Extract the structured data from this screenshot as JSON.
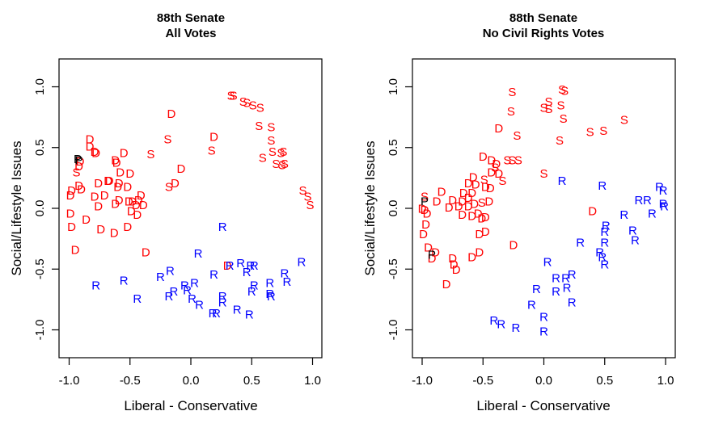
{
  "colors": {
    "D": "#ff0000",
    "S": "#ff0000",
    "R": "#0000ff",
    "P": "#000000"
  },
  "chart_data": [
    {
      "type": "scatter",
      "title": "88th Senate",
      "subtitle": "All Votes",
      "xlabel": "Liberal - Conservative",
      "ylabel": "Social/Lifestyle Issues",
      "xlim": [
        -1.08,
        1.08
      ],
      "ylim": [
        -1.23,
        1.23
      ],
      "xticks": [
        -1.0,
        -0.5,
        0.0,
        0.5,
        1.0
      ],
      "xtick_labels": [
        "-1.0",
        "-0.5",
        "0.0",
        "0.5",
        "1.0"
      ],
      "yticks": [
        -1.0,
        -0.5,
        0.0,
        0.5,
        1.0
      ],
      "ytick_labels": [
        "-1.0",
        "-0.5",
        "0.0",
        "0.5",
        "1.0"
      ],
      "grid": false,
      "marker": "letter",
      "points": [
        {
          "x": 0.33,
          "y": 0.93,
          "label": "S"
        },
        {
          "x": 0.35,
          "y": 0.93,
          "label": "S"
        },
        {
          "x": 0.43,
          "y": 0.88,
          "label": "S"
        },
        {
          "x": 0.46,
          "y": 0.87,
          "label": "S"
        },
        {
          "x": 0.51,
          "y": 0.85,
          "label": "S"
        },
        {
          "x": 0.57,
          "y": 0.83,
          "label": "S"
        },
        {
          "x": 0.56,
          "y": 0.68,
          "label": "S"
        },
        {
          "x": 0.66,
          "y": 0.67,
          "label": "S"
        },
        {
          "x": 0.66,
          "y": 0.56,
          "label": "S"
        },
        {
          "x": 0.67,
          "y": 0.47,
          "label": "S"
        },
        {
          "x": 0.59,
          "y": 0.42,
          "label": "S"
        },
        {
          "x": 0.74,
          "y": 0.46,
          "label": "S"
        },
        {
          "x": 0.76,
          "y": 0.47,
          "label": "S"
        },
        {
          "x": 0.7,
          "y": 0.37,
          "label": "S"
        },
        {
          "x": 0.75,
          "y": 0.36,
          "label": "S"
        },
        {
          "x": 0.77,
          "y": 0.37,
          "label": "S"
        },
        {
          "x": 0.92,
          "y": 0.15,
          "label": "S"
        },
        {
          "x": 0.96,
          "y": 0.1,
          "label": "S"
        },
        {
          "x": 0.98,
          "y": 0.03,
          "label": "S"
        },
        {
          "x": -0.33,
          "y": 0.45,
          "label": "S"
        },
        {
          "x": -0.19,
          "y": 0.57,
          "label": "S"
        },
        {
          "x": 0.17,
          "y": 0.48,
          "label": "S"
        },
        {
          "x": -0.18,
          "y": 0.18,
          "label": "S"
        },
        {
          "x": -0.94,
          "y": 0.3,
          "label": "S"
        },
        {
          "x": -0.16,
          "y": 0.78,
          "label": "D"
        },
        {
          "x": 0.19,
          "y": 0.59,
          "label": "D"
        },
        {
          "x": -0.08,
          "y": 0.33,
          "label": "D"
        },
        {
          "x": -0.13,
          "y": 0.21,
          "label": "D"
        },
        {
          "x": -0.83,
          "y": 0.57,
          "label": "D"
        },
        {
          "x": -0.83,
          "y": 0.51,
          "label": "D"
        },
        {
          "x": -0.79,
          "y": 0.47,
          "label": "D"
        },
        {
          "x": -0.78,
          "y": 0.46,
          "label": "D"
        },
        {
          "x": -0.62,
          "y": 0.4,
          "label": "D"
        },
        {
          "x": -0.61,
          "y": 0.38,
          "label": "D"
        },
        {
          "x": -0.55,
          "y": 0.46,
          "label": "D"
        },
        {
          "x": -0.91,
          "y": 0.39,
          "label": "D"
        },
        {
          "x": -0.92,
          "y": 0.35,
          "label": "D"
        },
        {
          "x": -0.58,
          "y": 0.3,
          "label": "D"
        },
        {
          "x": -0.5,
          "y": 0.29,
          "label": "D"
        },
        {
          "x": -0.59,
          "y": 0.21,
          "label": "D"
        },
        {
          "x": -0.68,
          "y": 0.23,
          "label": "D"
        },
        {
          "x": -0.67,
          "y": 0.23,
          "label": "D"
        },
        {
          "x": -0.76,
          "y": 0.21,
          "label": "D"
        },
        {
          "x": -0.6,
          "y": 0.18,
          "label": "D"
        },
        {
          "x": -0.52,
          "y": 0.18,
          "label": "D"
        },
        {
          "x": -0.92,
          "y": 0.19,
          "label": "D"
        },
        {
          "x": -0.9,
          "y": 0.16,
          "label": "D"
        },
        {
          "x": -0.98,
          "y": 0.15,
          "label": "D"
        },
        {
          "x": -0.99,
          "y": 0.11,
          "label": "D"
        },
        {
          "x": -0.79,
          "y": 0.1,
          "label": "D"
        },
        {
          "x": -0.71,
          "y": 0.11,
          "label": "D"
        },
        {
          "x": -0.59,
          "y": 0.07,
          "label": "D"
        },
        {
          "x": -0.51,
          "y": 0.06,
          "label": "D"
        },
        {
          "x": -0.48,
          "y": 0.06,
          "label": "D"
        },
        {
          "x": -0.43,
          "y": 0.07,
          "label": "D"
        },
        {
          "x": -0.41,
          "y": 0.11,
          "label": "D"
        },
        {
          "x": -0.39,
          "y": 0.03,
          "label": "D"
        },
        {
          "x": -0.45,
          "y": 0.03,
          "label": "D"
        },
        {
          "x": -0.62,
          "y": 0.04,
          "label": "D"
        },
        {
          "x": -0.76,
          "y": 0.02,
          "label": "D"
        },
        {
          "x": -0.49,
          "y": -0.02,
          "label": "D"
        },
        {
          "x": -0.44,
          "y": -0.05,
          "label": "D"
        },
        {
          "x": -0.99,
          "y": -0.04,
          "label": "D"
        },
        {
          "x": -0.86,
          "y": -0.09,
          "label": "D"
        },
        {
          "x": -0.98,
          "y": -0.15,
          "label": "D"
        },
        {
          "x": -0.74,
          "y": -0.17,
          "label": "D"
        },
        {
          "x": -0.63,
          "y": -0.2,
          "label": "D"
        },
        {
          "x": -0.52,
          "y": -0.15,
          "label": "D"
        },
        {
          "x": -0.95,
          "y": -0.34,
          "label": "D"
        },
        {
          "x": -0.37,
          "y": -0.36,
          "label": "D"
        },
        {
          "x": 0.3,
          "y": -0.47,
          "label": "D"
        },
        {
          "x": -0.93,
          "y": 0.41,
          "label": "P"
        },
        {
          "x": -0.92,
          "y": 0.4,
          "label": "P"
        },
        {
          "x": 0.26,
          "y": -0.15,
          "label": "R"
        },
        {
          "x": 0.06,
          "y": -0.37,
          "label": "R"
        },
        {
          "x": 0.91,
          "y": -0.44,
          "label": "R"
        },
        {
          "x": 0.41,
          "y": -0.45,
          "label": "R"
        },
        {
          "x": 0.49,
          "y": -0.47,
          "label": "R"
        },
        {
          "x": 0.52,
          "y": -0.47,
          "label": "R"
        },
        {
          "x": 0.32,
          "y": -0.47,
          "label": "R"
        },
        {
          "x": 0.46,
          "y": -0.52,
          "label": "R"
        },
        {
          "x": 0.19,
          "y": -0.54,
          "label": "R"
        },
        {
          "x": -0.17,
          "y": -0.51,
          "label": "R"
        },
        {
          "x": -0.25,
          "y": -0.56,
          "label": "R"
        },
        {
          "x": -0.55,
          "y": -0.59,
          "label": "R"
        },
        {
          "x": -0.78,
          "y": -0.63,
          "label": "R"
        },
        {
          "x": 0.77,
          "y": -0.53,
          "label": "R"
        },
        {
          "x": 0.79,
          "y": -0.6,
          "label": "R"
        },
        {
          "x": 0.65,
          "y": -0.61,
          "label": "R"
        },
        {
          "x": 0.52,
          "y": -0.63,
          "label": "R"
        },
        {
          "x": 0.03,
          "y": -0.61,
          "label": "R"
        },
        {
          "x": -0.05,
          "y": -0.63,
          "label": "R"
        },
        {
          "x": -0.03,
          "y": -0.67,
          "label": "R"
        },
        {
          "x": -0.14,
          "y": -0.68,
          "label": "R"
        },
        {
          "x": -0.18,
          "y": -0.72,
          "label": "R"
        },
        {
          "x": -0.44,
          "y": -0.74,
          "label": "R"
        },
        {
          "x": 0.26,
          "y": -0.72,
          "label": "R"
        },
        {
          "x": 0.26,
          "y": -0.77,
          "label": "R"
        },
        {
          "x": 0.5,
          "y": -0.68,
          "label": "R"
        },
        {
          "x": 0.65,
          "y": -0.7,
          "label": "R"
        },
        {
          "x": 0.66,
          "y": -0.72,
          "label": "R"
        },
        {
          "x": 0.01,
          "y": -0.74,
          "label": "R"
        },
        {
          "x": 0.07,
          "y": -0.79,
          "label": "R"
        },
        {
          "x": 0.18,
          "y": -0.86,
          "label": "R"
        },
        {
          "x": 0.21,
          "y": -0.86,
          "label": "R"
        },
        {
          "x": 0.38,
          "y": -0.83,
          "label": "R"
        },
        {
          "x": 0.48,
          "y": -0.87,
          "label": "R"
        }
      ]
    },
    {
      "type": "scatter",
      "title": "88th Senate",
      "subtitle": "No Civil Rights Votes",
      "xlabel": "Liberal - Conservative",
      "ylabel": "Social/Lifestyle Issues",
      "xlim": [
        -1.08,
        1.08
      ],
      "ylim": [
        -1.23,
        1.23
      ],
      "xticks": [
        -1.0,
        -0.5,
        0.0,
        0.5,
        1.0
      ],
      "xtick_labels": [
        "-1.0",
        "-0.5",
        "0.0",
        "0.5",
        "1.0"
      ],
      "yticks": [
        -1.0,
        -0.5,
        0.0,
        0.5,
        1.0
      ],
      "ytick_labels": [
        "-1.0",
        "-0.5",
        "0.0",
        "0.5",
        "1.0"
      ],
      "grid": false,
      "marker": "letter",
      "points": [
        {
          "x": -0.26,
          "y": 0.96,
          "label": "S"
        },
        {
          "x": 0.15,
          "y": 0.98,
          "label": "S"
        },
        {
          "x": 0.17,
          "y": 0.97,
          "label": "S"
        },
        {
          "x": -0.27,
          "y": 0.8,
          "label": "S"
        },
        {
          "x": 0.04,
          "y": 0.88,
          "label": "S"
        },
        {
          "x": 0.0,
          "y": 0.83,
          "label": "S"
        },
        {
          "x": 0.04,
          "y": 0.82,
          "label": "S"
        },
        {
          "x": 0.14,
          "y": 0.85,
          "label": "S"
        },
        {
          "x": 0.16,
          "y": 0.74,
          "label": "S"
        },
        {
          "x": 0.38,
          "y": 0.63,
          "label": "S"
        },
        {
          "x": 0.49,
          "y": 0.64,
          "label": "S"
        },
        {
          "x": 0.66,
          "y": 0.73,
          "label": "S"
        },
        {
          "x": -0.22,
          "y": 0.6,
          "label": "S"
        },
        {
          "x": 0.13,
          "y": 0.56,
          "label": "S"
        },
        {
          "x": -0.4,
          "y": 0.34,
          "label": "S"
        },
        {
          "x": -0.3,
          "y": 0.4,
          "label": "S"
        },
        {
          "x": -0.26,
          "y": 0.4,
          "label": "S"
        },
        {
          "x": -0.21,
          "y": 0.4,
          "label": "S"
        },
        {
          "x": -0.34,
          "y": 0.23,
          "label": "S"
        },
        {
          "x": -0.49,
          "y": 0.24,
          "label": "S"
        },
        {
          "x": -0.51,
          "y": 0.05,
          "label": "S"
        },
        {
          "x": -0.98,
          "y": 0.1,
          "label": "S"
        },
        {
          "x": 0.0,
          "y": 0.29,
          "label": "S"
        },
        {
          "x": -0.37,
          "y": 0.66,
          "label": "D"
        },
        {
          "x": -0.5,
          "y": 0.43,
          "label": "D"
        },
        {
          "x": -0.43,
          "y": 0.4,
          "label": "D"
        },
        {
          "x": -0.39,
          "y": 0.37,
          "label": "D"
        },
        {
          "x": -0.43,
          "y": 0.3,
          "label": "D"
        },
        {
          "x": -0.37,
          "y": 0.29,
          "label": "D"
        },
        {
          "x": -0.58,
          "y": 0.26,
          "label": "D"
        },
        {
          "x": -0.56,
          "y": 0.2,
          "label": "D"
        },
        {
          "x": -0.62,
          "y": 0.21,
          "label": "D"
        },
        {
          "x": -0.59,
          "y": 0.13,
          "label": "D"
        },
        {
          "x": -0.48,
          "y": 0.18,
          "label": "D"
        },
        {
          "x": -0.44,
          "y": 0.17,
          "label": "D"
        },
        {
          "x": -0.62,
          "y": 0.09,
          "label": "D"
        },
        {
          "x": -0.66,
          "y": 0.13,
          "label": "D"
        },
        {
          "x": -0.67,
          "y": 0.06,
          "label": "D"
        },
        {
          "x": -0.75,
          "y": 0.07,
          "label": "D"
        },
        {
          "x": -0.84,
          "y": 0.14,
          "label": "D"
        },
        {
          "x": -0.88,
          "y": 0.06,
          "label": "D"
        },
        {
          "x": -0.78,
          "y": 0.01,
          "label": "D"
        },
        {
          "x": -0.7,
          "y": 0.02,
          "label": "D"
        },
        {
          "x": -0.62,
          "y": 0.02,
          "label": "D"
        },
        {
          "x": -0.57,
          "y": 0.04,
          "label": "D"
        },
        {
          "x": -0.45,
          "y": 0.06,
          "label": "D"
        },
        {
          "x": -0.54,
          "y": -0.04,
          "label": "D"
        },
        {
          "x": -0.51,
          "y": -0.08,
          "label": "D"
        },
        {
          "x": -0.48,
          "y": -0.07,
          "label": "D"
        },
        {
          "x": -0.67,
          "y": -0.05,
          "label": "D"
        },
        {
          "x": -0.59,
          "y": -0.06,
          "label": "D"
        },
        {
          "x": -1.0,
          "y": 0.0,
          "label": "D"
        },
        {
          "x": -0.98,
          "y": -0.01,
          "label": "D"
        },
        {
          "x": -0.96,
          "y": -0.04,
          "label": "D"
        },
        {
          "x": -0.97,
          "y": -0.13,
          "label": "D"
        },
        {
          "x": -0.99,
          "y": -0.21,
          "label": "D"
        },
        {
          "x": -0.53,
          "y": -0.21,
          "label": "D"
        },
        {
          "x": -0.48,
          "y": -0.19,
          "label": "D"
        },
        {
          "x": -0.95,
          "y": -0.32,
          "label": "D"
        },
        {
          "x": -0.89,
          "y": -0.36,
          "label": "D"
        },
        {
          "x": -0.92,
          "y": -0.41,
          "label": "D"
        },
        {
          "x": -0.75,
          "y": -0.41,
          "label": "D"
        },
        {
          "x": -0.74,
          "y": -0.46,
          "label": "D"
        },
        {
          "x": -0.72,
          "y": -0.5,
          "label": "D"
        },
        {
          "x": -0.59,
          "y": -0.4,
          "label": "D"
        },
        {
          "x": -0.53,
          "y": -0.36,
          "label": "D"
        },
        {
          "x": -0.8,
          "y": -0.62,
          "label": "D"
        },
        {
          "x": -0.25,
          "y": -0.3,
          "label": "D"
        },
        {
          "x": 0.4,
          "y": -0.02,
          "label": "D"
        },
        {
          "x": -0.98,
          "y": 0.06,
          "label": "P"
        },
        {
          "x": -0.92,
          "y": -0.38,
          "label": "P"
        },
        {
          "x": 0.15,
          "y": 0.23,
          "label": "R"
        },
        {
          "x": 0.48,
          "y": 0.19,
          "label": "R"
        },
        {
          "x": 0.95,
          "y": 0.18,
          "label": "R"
        },
        {
          "x": 0.98,
          "y": 0.15,
          "label": "R"
        },
        {
          "x": 0.78,
          "y": 0.07,
          "label": "R"
        },
        {
          "x": 0.85,
          "y": 0.07,
          "label": "R"
        },
        {
          "x": 0.98,
          "y": 0.04,
          "label": "R"
        },
        {
          "x": 0.99,
          "y": 0.02,
          "label": "R"
        },
        {
          "x": 0.66,
          "y": -0.05,
          "label": "R"
        },
        {
          "x": 0.89,
          "y": -0.04,
          "label": "R"
        },
        {
          "x": 0.73,
          "y": -0.18,
          "label": "R"
        },
        {
          "x": 0.75,
          "y": -0.26,
          "label": "R"
        },
        {
          "x": 0.51,
          "y": -0.14,
          "label": "R"
        },
        {
          "x": 0.5,
          "y": -0.19,
          "label": "R"
        },
        {
          "x": 0.5,
          "y": -0.28,
          "label": "R"
        },
        {
          "x": 0.5,
          "y": -0.46,
          "label": "R"
        },
        {
          "x": 0.46,
          "y": -0.36,
          "label": "R"
        },
        {
          "x": 0.48,
          "y": -0.4,
          "label": "R"
        },
        {
          "x": 0.3,
          "y": -0.28,
          "label": "R"
        },
        {
          "x": 0.03,
          "y": -0.44,
          "label": "R"
        },
        {
          "x": 0.1,
          "y": -0.57,
          "label": "R"
        },
        {
          "x": 0.18,
          "y": -0.57,
          "label": "R"
        },
        {
          "x": 0.23,
          "y": -0.54,
          "label": "R"
        },
        {
          "x": -0.06,
          "y": -0.66,
          "label": "R"
        },
        {
          "x": 0.1,
          "y": -0.68,
          "label": "R"
        },
        {
          "x": 0.19,
          "y": -0.65,
          "label": "R"
        },
        {
          "x": 0.23,
          "y": -0.77,
          "label": "R"
        },
        {
          "x": -0.1,
          "y": -0.79,
          "label": "R"
        },
        {
          "x": 0.0,
          "y": -0.89,
          "label": "R"
        },
        {
          "x": 0.0,
          "y": -1.01,
          "label": "R"
        },
        {
          "x": -0.41,
          "y": -0.92,
          "label": "R"
        },
        {
          "x": -0.35,
          "y": -0.95,
          "label": "R"
        },
        {
          "x": -0.23,
          "y": -0.98,
          "label": "R"
        }
      ]
    }
  ]
}
